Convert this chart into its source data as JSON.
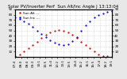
{
  "title": "Solar PV/Inverter Perf  Sun Alt/Inc Angle J 13:13:04",
  "red_label": "Sun Alt ---",
  "blue_label": "Sun Inc ---",
  "background": "#e8e8e8",
  "plot_bg": "#ffffff",
  "red_color": "#cc0000",
  "blue_color": "#0000cc",
  "ylim": [
    0,
    90
  ],
  "xlim": [
    0,
    22
  ],
  "time_labels": [
    "07:4",
    "08:0",
    "08:4",
    "09:3",
    "10:1",
    "10:5",
    "11:4",
    "12:2",
    "13:1",
    "13:5",
    "14:4",
    "15:2",
    "16:1",
    "16:5",
    "17:4",
    "18:2",
    "19:1"
  ],
  "sun_alt_x": [
    0,
    1,
    2,
    3,
    4,
    5,
    6,
    7,
    8,
    9,
    10,
    11,
    12,
    13,
    14,
    15,
    16,
    17,
    18,
    19,
    20,
    21,
    22
  ],
  "sun_alt_y": [
    2,
    5,
    10,
    16,
    22,
    29,
    36,
    42,
    47,
    50,
    51,
    50,
    47,
    42,
    36,
    29,
    22,
    16,
    10,
    5,
    2,
    1,
    0
  ],
  "sun_inc_x": [
    0,
    1,
    2,
    3,
    4,
    5,
    6,
    7,
    8,
    9,
    10,
    11,
    12,
    13,
    14,
    15,
    16,
    17,
    18,
    19,
    20,
    21,
    22
  ],
  "sun_inc_y": [
    75,
    72,
    68,
    63,
    57,
    50,
    43,
    37,
    31,
    27,
    24,
    22,
    24,
    30,
    38,
    50,
    60,
    68,
    75,
    80,
    83,
    85,
    87
  ],
  "grid_color": "#aaaaaa",
  "title_fontsize": 4.0,
  "tick_fontsize": 3.0,
  "legend_fontsize": 3.0,
  "yticks": [
    10,
    20,
    30,
    40,
    50,
    60,
    70,
    80,
    90
  ]
}
